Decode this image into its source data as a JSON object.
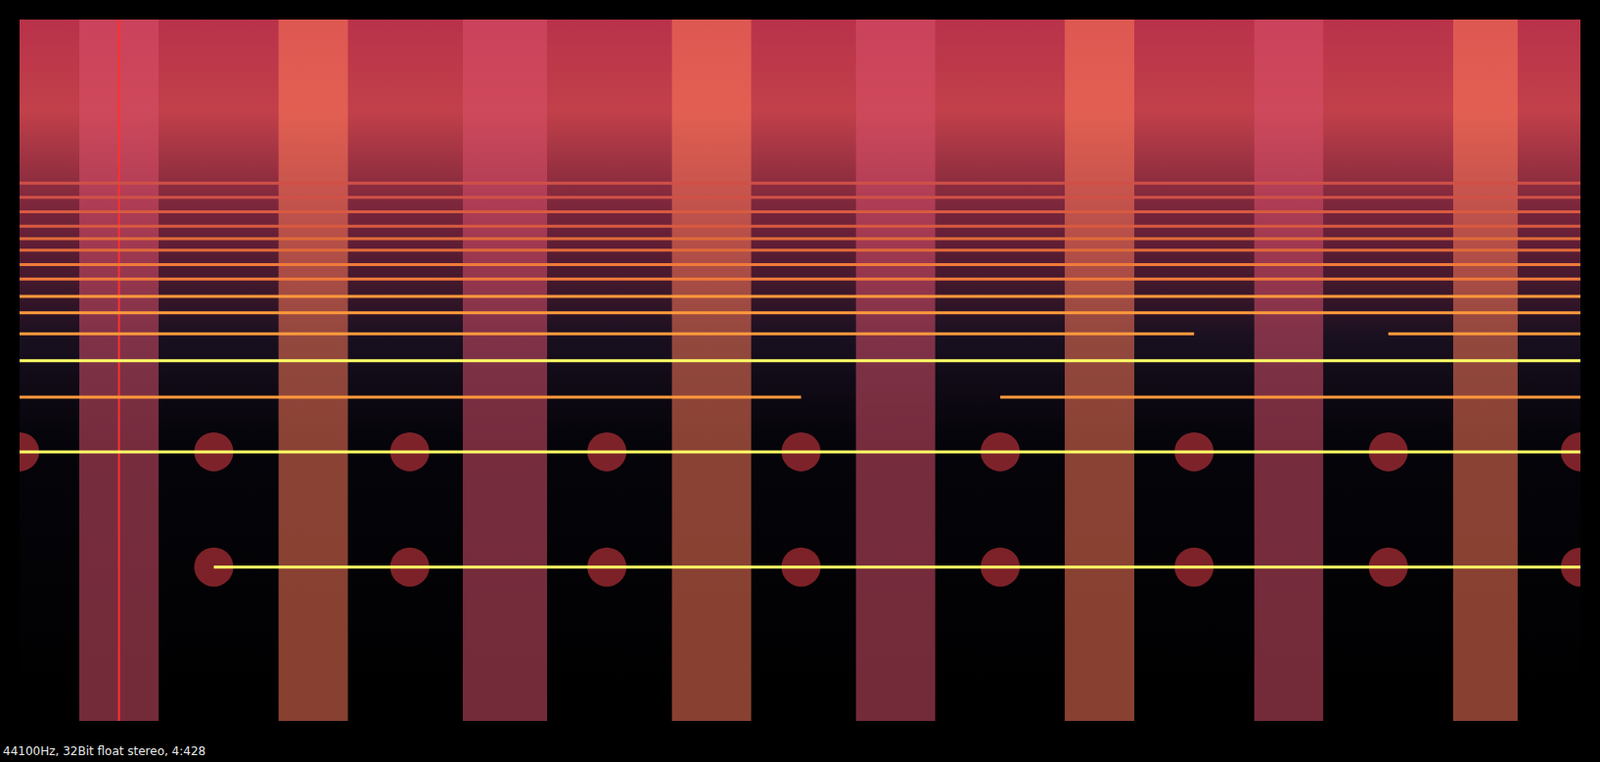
{
  "chart_data": {
    "type": "spectrogram",
    "caption": "44100Hz, 32Bit float stereo, 4:428",
    "log": "y",
    "grid": false,
    "tick_labels": false,
    "xlim": [
      0,
      4.428
    ],
    "ylim": [
      20,
      22050
    ],
    "tones": [
      {
        "frequency": 93,
        "segments": [
          [
            0.551,
            4.428
          ]
        ],
        "color": "#ffff66"
      },
      {
        "frequency": 294,
        "segments": [
          [
            0,
            4.428
          ]
        ],
        "color": "#ffff66"
      },
      {
        "frequency": 507,
        "segments": [
          [
            0,
            2.217
          ],
          [
            2.782,
            4.428
          ]
        ],
        "color": "#ff9a3c"
      },
      {
        "frequency": 730,
        "segments": [
          [
            0,
            4.428
          ]
        ],
        "color": "#ffff66"
      },
      {
        "frequency": 955,
        "segments": [
          [
            0,
            3.332
          ],
          [
            3.883,
            4.428
          ]
        ],
        "color": "#ff9a3c"
      },
      {
        "frequency": 1180,
        "segments": [
          [
            0,
            4.428
          ]
        ],
        "color": "#ff9a3c"
      },
      {
        "frequency": 1390,
        "segments": [
          [
            0,
            4.428
          ]
        ],
        "color": "#ff9a3c"
      },
      {
        "frequency": 1652,
        "segments": [
          [
            0,
            4.428
          ]
        ],
        "color": "#f07a3a"
      },
      {
        "frequency": 1906,
        "segments": [
          [
            0,
            4.428
          ]
        ],
        "color": "#f07a3a"
      },
      {
        "frequency": 2203,
        "segments": [
          [
            0,
            4.428
          ]
        ],
        "color": "#e06a3a"
      },
      {
        "frequency": 2472,
        "segments": [
          [
            0,
            4.428
          ]
        ],
        "color": "#e06a3a"
      },
      {
        "frequency": 2800,
        "segments": [
          [
            0,
            4.428
          ]
        ],
        "color": "#d85a40"
      },
      {
        "frequency": 3232,
        "segments": [
          [
            0,
            4.428
          ]
        ],
        "color": "#d85a40"
      },
      {
        "frequency": 3732,
        "segments": [
          [
            0,
            4.428
          ]
        ],
        "color": "#d05048"
      },
      {
        "frequency": 4307,
        "segments": [
          [
            0,
            4.428
          ]
        ],
        "color": "#d05048"
      }
    ],
    "bursts": {
      "ranges": [
        [
          0.169,
          0.395
        ],
        [
          0.734,
          0.932
        ],
        [
          1.257,
          1.497
        ],
        [
          1.85,
          2.076
        ],
        [
          2.372,
          2.598
        ],
        [
          2.965,
          3.163
        ],
        [
          3.502,
          3.699
        ],
        [
          4.067,
          4.25
        ]
      ],
      "colors": [
        "#d9506a",
        "#ff7a5a",
        "#d9506a",
        "#ff7a5a",
        "#d9506a",
        "#ff7a5a",
        "#d9506a",
        "#ff7a5a"
      ]
    },
    "pulses": [
      {
        "frequency": 294,
        "x": [
          0,
          0.551,
          1.107,
          1.666,
          2.217,
          2.782,
          3.332,
          3.883,
          4.428
        ]
      },
      {
        "frequency": 93,
        "x": [
          0.551,
          1.107,
          1.666,
          2.217,
          2.782,
          3.332,
          3.883,
          4.428
        ]
      }
    ],
    "events": [
      {
        "x": 0.282,
        "color": "#ff3030"
      }
    ]
  }
}
